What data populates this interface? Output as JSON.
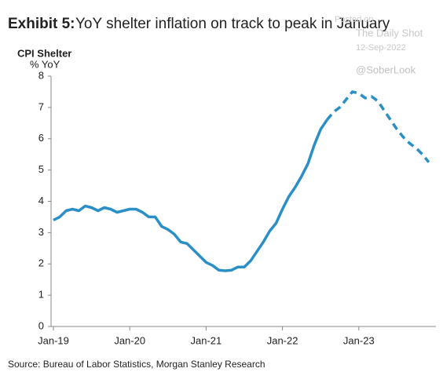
{
  "chart_data": {
    "type": "line",
    "title_label": "Exhibit 5:",
    "title": "YoY shelter inflation on track to peak in January",
    "y_axis_title": "CPI Shelter",
    "y_axis_unit": "% YoY",
    "source": "Source: Bureau of Labor Statistics, Morgan Stanley Research",
    "watermark": [
      "Posted on",
      "The Daily Shot",
      "12-Sep-2022",
      "@SoberLook"
    ],
    "categories": [
      "Jan-19",
      null,
      null,
      null,
      null,
      null,
      null,
      null,
      null,
      null,
      null,
      null,
      "Jan-20",
      null,
      null,
      null,
      null,
      null,
      null,
      null,
      null,
      null,
      null,
      null,
      "Jan-21",
      null,
      null,
      null,
      null,
      null,
      null,
      null,
      null,
      null,
      null,
      null,
      "Jan-22",
      null,
      null,
      null,
      null,
      null,
      null,
      null,
      null,
      null,
      null,
      null,
      "Jan-23",
      null,
      null,
      null,
      null,
      null,
      null,
      null,
      null,
      null,
      null,
      null
    ],
    "ylim": [
      0,
      8
    ],
    "yticks": [
      0,
      1,
      2,
      3,
      4,
      5,
      6,
      7,
      8
    ],
    "series": [
      {
        "color": "#2b8fc7",
        "dashed": false,
        "values": [
          3.4,
          3.5,
          3.7,
          3.75,
          3.7,
          3.85,
          3.8,
          3.7,
          3.8,
          3.75,
          3.65,
          3.7,
          3.75,
          3.75,
          3.65,
          3.5,
          3.5,
          3.2,
          3.1,
          2.95,
          2.7,
          2.65,
          2.45,
          2.25,
          2.05,
          1.95,
          1.8,
          1.78,
          1.8,
          1.9,
          1.9,
          2.1,
          2.4,
          2.7,
          3.05,
          3.3,
          3.75,
          4.15,
          4.45,
          4.8,
          5.2,
          5.8,
          6.3,
          6.6,
          null,
          null,
          null,
          null,
          null,
          null,
          null,
          null,
          null,
          null,
          null,
          null,
          null,
          null,
          null,
          null
        ]
      },
      {
        "color": "#2b8fc7",
        "dashed": true,
        "values": [
          null,
          null,
          null,
          null,
          null,
          null,
          null,
          null,
          null,
          null,
          null,
          null,
          null,
          null,
          null,
          null,
          null,
          null,
          null,
          null,
          null,
          null,
          null,
          null,
          null,
          null,
          null,
          null,
          null,
          null,
          null,
          null,
          null,
          null,
          null,
          null,
          null,
          null,
          null,
          null,
          null,
          null,
          null,
          6.6,
          6.85,
          7.0,
          7.25,
          7.5,
          7.45,
          7.3,
          7.35,
          7.2,
          6.9,
          6.6,
          6.3,
          6.05,
          5.85,
          5.7,
          5.5,
          5.25
        ]
      }
    ]
  }
}
